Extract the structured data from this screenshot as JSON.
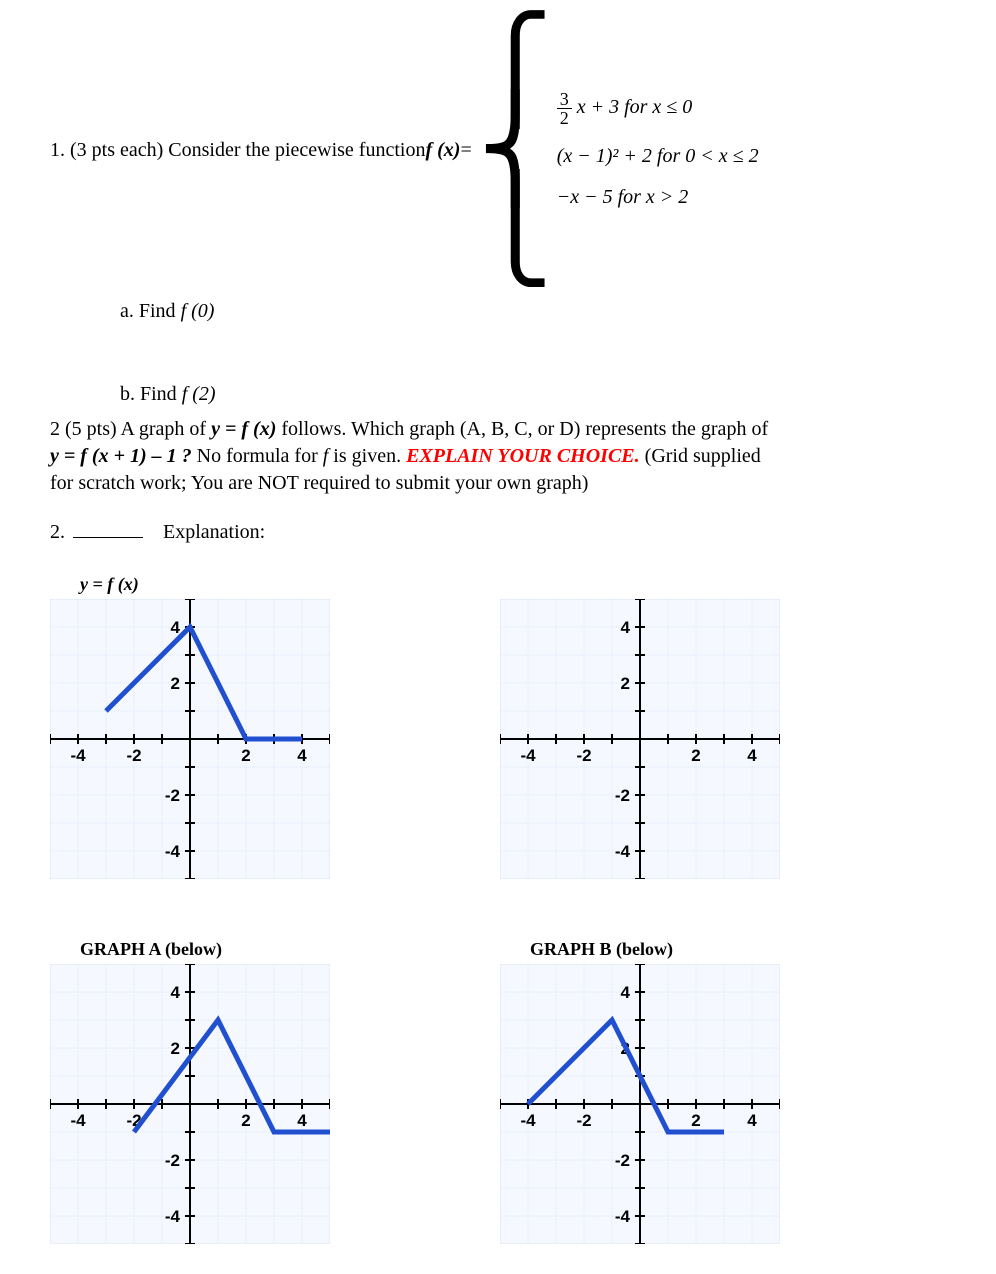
{
  "q1": {
    "intro_prefix": "1. (3 pts each) Consider the piecewise function  ",
    "fx_label": "f (x)",
    "equals": " = ",
    "frac_num": "3",
    "frac_den": "2",
    "case1_rest": "x + 3 for x ≤ 0",
    "case2": "(x − 1)² + 2 for 0 < x ≤ 2",
    "case3": "−x − 5 for x > 2",
    "sub_a_label": "a.   Find  ",
    "sub_a_fx": "f (0)",
    "sub_b_label": "b.   Find  ",
    "sub_b_fx": "f (2)"
  },
  "q2": {
    "line1_a": "2 (5 pts) A graph of ",
    "line1_eq1": "y = f (x)",
    "line1_b": " follows.  Which graph (A, B, C, or D) represents the graph of",
    "line2_eq": "y =  f (x + 1) – 1 ?",
    "line2_a": "   No formula for ",
    "line2_f": "f",
    "line2_b": " is given.       ",
    "explain": "EXPLAIN YOUR CHOICE.",
    "line2_c": "  (Grid supplied",
    "line3": "for scratch work; You are NOT required to submit your own graph)",
    "ans_num": "2.",
    "explanation_label": "Explanation:"
  },
  "graphs": {
    "main_title_y": "y = ",
    "main_title_fx": "f (x)",
    "graph_a_title": "GRAPH A (below)",
    "graph_b_title": "GRAPH B (below)",
    "axis_labels": {
      "n4": "-4",
      "n2": "-2",
      "p2": "2",
      "p4": "4"
    },
    "unit": 28,
    "range": 5,
    "grid_color": "#c8d8f0",
    "bg_color": "#f5f9ff",
    "line_color": "#2050d0",
    "main_points": [
      [
        -3,
        1
      ],
      [
        0,
        4
      ],
      [
        2,
        0
      ],
      [
        4,
        0
      ]
    ],
    "blank_points": [],
    "graph_a_points": [
      [
        -2,
        -1
      ],
      [
        1,
        3
      ],
      [
        3,
        -1
      ],
      [
        5,
        -1
      ]
    ],
    "graph_b_points": [
      [
        -4,
        0
      ],
      [
        -1,
        3
      ],
      [
        1,
        -1
      ],
      [
        3,
        -1
      ]
    ]
  }
}
